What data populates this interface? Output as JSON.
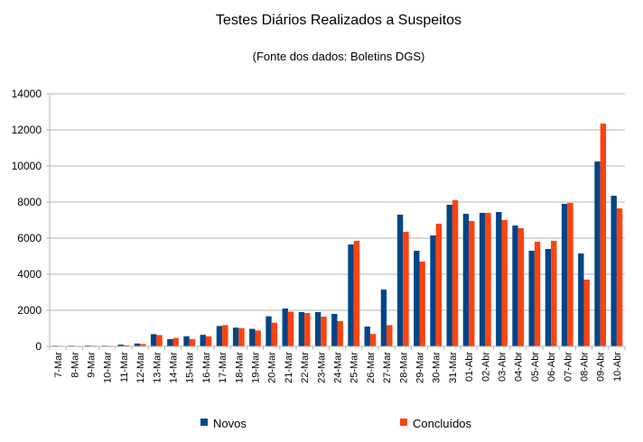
{
  "chart_data": {
    "type": "bar",
    "title": "Testes Diários Realizados a Suspeitos",
    "subtitle": "(Fonte dos dados: Boletins DGS)",
    "xlabel": "",
    "ylabel": "",
    "ylim": [
      0,
      14000
    ],
    "yticks": [
      0,
      2000,
      4000,
      6000,
      8000,
      10000,
      12000,
      14000
    ],
    "grid": true,
    "legend_position": "bottom",
    "categories": [
      "7-Mar",
      "8-Mar",
      "9-Mar",
      "10-Mar",
      "11-Mar",
      "12-Mar",
      "13-Mar",
      "14-Mar",
      "15-Mar",
      "16-Mar",
      "17-Mar",
      "18-Mar",
      "19-Mar",
      "20-Mar",
      "21-Mar",
      "22-Mar",
      "23-Mar",
      "24-Mar",
      "25-Mar",
      "26-Mar",
      "27-Mar",
      "28-Mar",
      "29-Mar",
      "30-Mar",
      "31-Mar",
      "01-Abr",
      "02-Abr",
      "03-Abr",
      "04-Abr",
      "05-Abr",
      "06-Abr",
      "07-Abr",
      "08-Abr",
      "09-Abr",
      "10-Abr"
    ],
    "series": [
      {
        "name": "Novos",
        "color": "#004586",
        "values": [
          40,
          40,
          50,
          40,
          100,
          160,
          680,
          400,
          560,
          640,
          1130,
          1040,
          970,
          1670,
          2100,
          1900,
          1900,
          1800,
          5650,
          1100,
          3150,
          7300,
          5300,
          6150,
          7850,
          7350,
          7400,
          7450,
          6700,
          5300,
          5400,
          7900,
          5150,
          10250,
          8350
        ]
      },
      {
        "name": "Concluídos",
        "color": "#ff420e",
        "values": [
          30,
          20,
          40,
          30,
          60,
          130,
          630,
          470,
          410,
          560,
          1180,
          1010,
          880,
          1310,
          1920,
          1850,
          1650,
          1400,
          5850,
          690,
          1180,
          6350,
          4700,
          6800,
          8100,
          6950,
          7400,
          7000,
          6550,
          5800,
          5850,
          7950,
          3700,
          12350,
          7650
        ]
      }
    ]
  }
}
